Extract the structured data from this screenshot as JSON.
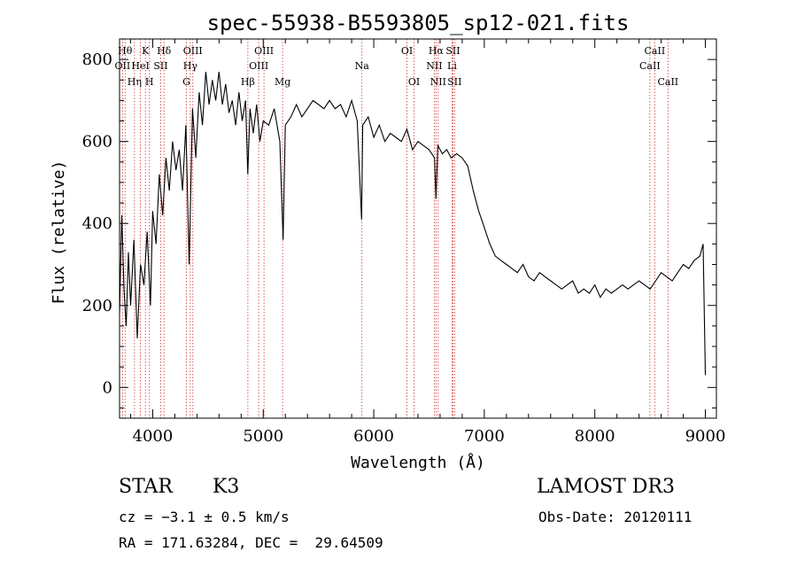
{
  "chart_data": {
    "type": "line",
    "title": "spec-55938-B5593805_sp12-021.fits",
    "xlabel": "Wavelength (Å)",
    "ylabel": "Flux (relative)",
    "xlim": [
      3700,
      9100
    ],
    "ylim": [
      -75,
      850
    ],
    "xticks": [
      4000,
      5000,
      6000,
      7000,
      8000,
      9000
    ],
    "yticks": [
      0,
      200,
      400,
      600,
      800
    ],
    "series": [
      {
        "name": "spectrum",
        "x": [
          3700,
          3720,
          3740,
          3760,
          3780,
          3800,
          3830,
          3860,
          3890,
          3920,
          3950,
          3980,
          4000,
          4030,
          4060,
          4090,
          4120,
          4150,
          4180,
          4210,
          4240,
          4270,
          4300,
          4330,
          4360,
          4390,
          4420,
          4450,
          4480,
          4510,
          4540,
          4570,
          4600,
          4630,
          4660,
          4690,
          4720,
          4750,
          4780,
          4810,
          4840,
          4860,
          4880,
          4910,
          4940,
          4970,
          5000,
          5050,
          5100,
          5150,
          5180,
          5200,
          5250,
          5300,
          5350,
          5400,
          5450,
          5500,
          5550,
          5600,
          5650,
          5700,
          5750,
          5800,
          5850,
          5890,
          5900,
          5950,
          6000,
          6050,
          6100,
          6150,
          6200,
          6250,
          6300,
          6350,
          6400,
          6450,
          6500,
          6550,
          6563,
          6580,
          6620,
          6660,
          6700,
          6750,
          6800,
          6850,
          6900,
          6950,
          7000,
          7050,
          7100,
          7150,
          7200,
          7250,
          7300,
          7350,
          7400,
          7450,
          7500,
          7550,
          7600,
          7650,
          7700,
          7750,
          7800,
          7850,
          7900,
          7950,
          8000,
          8050,
          8100,
          8150,
          8200,
          8250,
          8300,
          8350,
          8400,
          8450,
          8500,
          8550,
          8600,
          8650,
          8700,
          8750,
          8800,
          8850,
          8900,
          8950,
          8980,
          9000
        ],
        "y": [
          180,
          420,
          240,
          150,
          330,
          200,
          360,
          120,
          300,
          250,
          380,
          200,
          430,
          350,
          520,
          420,
          560,
          480,
          600,
          530,
          580,
          480,
          640,
          300,
          680,
          560,
          720,
          640,
          770,
          690,
          750,
          700,
          770,
          690,
          740,
          670,
          700,
          640,
          720,
          650,
          700,
          520,
          680,
          620,
          690,
          600,
          650,
          640,
          680,
          600,
          360,
          640,
          660,
          690,
          660,
          680,
          700,
          690,
          680,
          700,
          680,
          690,
          660,
          700,
          650,
          410,
          640,
          660,
          610,
          640,
          600,
          620,
          610,
          600,
          630,
          580,
          600,
          590,
          580,
          560,
          460,
          590,
          570,
          580,
          560,
          570,
          560,
          540,
          480,
          430,
          390,
          350,
          320,
          310,
          300,
          290,
          280,
          300,
          270,
          260,
          280,
          270,
          260,
          250,
          240,
          250,
          260,
          230,
          240,
          230,
          250,
          220,
          240,
          230,
          240,
          250,
          240,
          250,
          260,
          250,
          240,
          260,
          280,
          270,
          260,
          280,
          300,
          290,
          310,
          320,
          350,
          30
        ]
      }
    ],
    "spectral_lines": [
      {
        "wl": 3727,
        "label": "OII",
        "row": 2
      },
      {
        "wl": 3750,
        "label": "Hθ",
        "row": 1
      },
      {
        "wl": 3835,
        "label": "Hη",
        "row": 3
      },
      {
        "wl": 3889,
        "label": "HeI",
        "row": 2
      },
      {
        "wl": 3934,
        "label": "K",
        "row": 1
      },
      {
        "wl": 3970,
        "label": "H",
        "row": 3
      },
      {
        "wl": 4072,
        "label": "SII",
        "row": 2
      },
      {
        "wl": 4102,
        "label": "Hδ",
        "row": 1
      },
      {
        "wl": 4305,
        "label": "G",
        "row": 3
      },
      {
        "wl": 4340,
        "label": "Hγ",
        "row": 2
      },
      {
        "wl": 4363,
        "label": "OIII",
        "row": 1
      },
      {
        "wl": 4861,
        "label": "Hβ",
        "row": 3
      },
      {
        "wl": 4959,
        "label": "OIII",
        "row": 2
      },
      {
        "wl": 5007,
        "label": "OIII",
        "row": 1
      },
      {
        "wl": 5175,
        "label": "Mg",
        "row": 3
      },
      {
        "wl": 5893,
        "label": "Na",
        "row": 2
      },
      {
        "wl": 6300,
        "label": "OI",
        "row": 1
      },
      {
        "wl": 6364,
        "label": "OI",
        "row": 3
      },
      {
        "wl": 6548,
        "label": "NII",
        "row": 2
      },
      {
        "wl": 6563,
        "label": "Hα",
        "row": 1
      },
      {
        "wl": 6583,
        "label": "NII",
        "row": 3
      },
      {
        "wl": 6708,
        "label": "Li",
        "row": 2
      },
      {
        "wl": 6716,
        "label": "SII",
        "row": 1
      },
      {
        "wl": 6731,
        "label": "SII",
        "row": 3
      },
      {
        "wl": 8498,
        "label": "CaII",
        "row": 2
      },
      {
        "wl": 8542,
        "label": "CaII",
        "row": 1
      },
      {
        "wl": 8662,
        "label": "CaII",
        "row": 3
      }
    ]
  },
  "info": {
    "object_class": "STAR",
    "subclass": "K3",
    "survey": "LAMOST DR3",
    "redshift": "cz = −3.1 ± 0.5 km/s",
    "obs_date": "Obs-Date: 20120111",
    "coords": "RA = 171.63284, DEC =  29.64509"
  },
  "colors": {
    "spectrum": "#000000",
    "line_marker": "#cc3333",
    "axis": "#000000"
  }
}
